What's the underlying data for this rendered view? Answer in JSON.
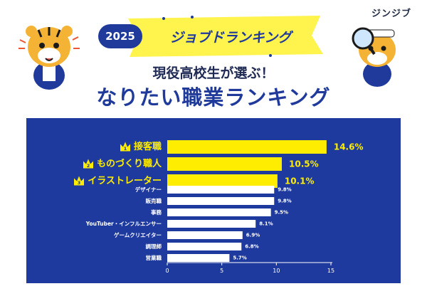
{
  "header": {
    "brand": "ジンジブ",
    "year": "2025",
    "banner": "ジョブドランキング",
    "subtitle": "現役高校生が選ぶ！",
    "title": "なりたい職業ランキング"
  },
  "chart_data": {
    "type": "bar",
    "orientation": "horizontal",
    "categories": [
      "接客職",
      "ものづくり職人",
      "イラストレーター",
      "デザイナー",
      "販売職",
      "事務",
      "YouTuber・インフルエンサー",
      "ゲームクリエイター",
      "調理師",
      "営業職"
    ],
    "values": [
      14.6,
      10.5,
      10.1,
      9.8,
      9.8,
      9.5,
      8.1,
      6.9,
      6.8,
      5.7
    ],
    "value_labels": [
      "14.6%",
      "10.5%",
      "10.1%",
      "9.8%",
      "9.8%",
      "9.5%",
      "8.1%",
      "6.9%",
      "6.8%",
      "5.7%"
    ],
    "ranks": [
      "1",
      "2",
      "3"
    ],
    "xlim": [
      0,
      15
    ],
    "xticks": [
      0,
      5,
      10,
      15
    ],
    "xtick_labels": [
      "0",
      "5",
      "10",
      "15"
    ],
    "grid": false,
    "colors": {
      "panel": "#1e3a9e",
      "top_bar": "#ffed00",
      "bar": "#ffffff",
      "label": "#ffffff",
      "top_label": "#ffed00"
    }
  }
}
